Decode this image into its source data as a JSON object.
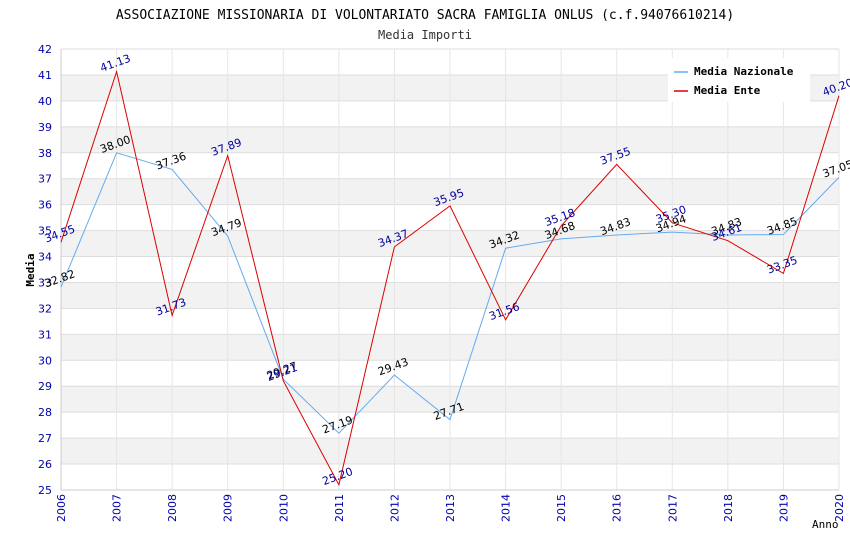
{
  "chart_data": {
    "type": "line",
    "title": "ASSOCIAZIONE MISSIONARIA DI VOLONTARIATO SACRA FAMIGLIA ONLUS (c.f.94076610214)",
    "subtitle": "Media Importi",
    "xlabel": "Anno",
    "ylabel": "Media",
    "ylim": [
      25,
      42
    ],
    "yticks": [
      "25",
      "26",
      "27",
      "28",
      "29",
      "30",
      "31",
      "32",
      "33",
      "34",
      "35",
      "36",
      "37",
      "38",
      "39",
      "40",
      "41",
      "42"
    ],
    "categories": [
      "2006",
      "2007",
      "2008",
      "2009",
      "2010",
      "2011",
      "2012",
      "2013",
      "2014",
      "2015",
      "2016",
      "2017",
      "2018",
      "2019",
      "2020"
    ],
    "legend_position": "top-right",
    "grid": true,
    "series": [
      {
        "name": "Media Nazionale",
        "color": "#66aaee",
        "label_color": "#000000",
        "values": [
          32.82,
          38.0,
          37.36,
          34.79,
          29.27,
          27.19,
          29.43,
          27.71,
          34.32,
          34.68,
          34.83,
          34.94,
          34.83,
          34.85,
          37.05
        ],
        "labels": [
          "32.82",
          "38.00",
          "37.36",
          "34.79",
          "29.27",
          "27.19",
          "29.43",
          "27.71",
          "34.32",
          "34.68",
          "34.83",
          "34.94",
          "34.83",
          "34.85",
          "37.05"
        ]
      },
      {
        "name": "Media Ente",
        "color": "#dd0000",
        "label_color": "#000099",
        "values": [
          34.55,
          41.13,
          31.73,
          37.89,
          29.21,
          25.2,
          34.37,
          35.95,
          31.56,
          35.18,
          37.55,
          35.3,
          34.61,
          33.35,
          40.2
        ],
        "labels": [
          "34.55",
          "41.13",
          "31.73",
          "37.89",
          "29.21",
          "25.20",
          "34.37",
          "35.95",
          "31.56",
          "35.18",
          "37.55",
          "35.30",
          "34.61",
          "33.35",
          "40.20"
        ]
      }
    ]
  }
}
